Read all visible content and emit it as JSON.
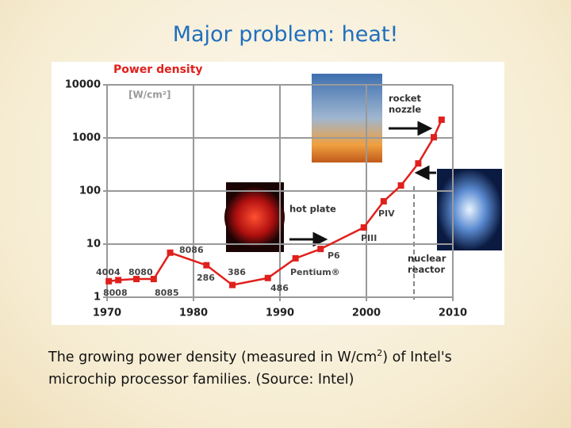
{
  "slide": {
    "title": "Major problem: heat!",
    "caption": [
      "The growing power density (measured in W/cm",
      "2",
      ") of Intel's",
      "microchip processor families. (Source: Intel)"
    ]
  },
  "chart_data": {
    "type": "line",
    "title": "Power density",
    "y_label": "[W/cm²]",
    "x": [
      1970.2,
      1971.3,
      1973.4,
      1975.4,
      1977.3,
      1981.5,
      1984.5,
      1988.6,
      1991.8,
      1994.7,
      1999.7,
      2002,
      2004,
      2006,
      2007.8,
      2008.7
    ],
    "series": [
      {
        "color": "#e0201c",
        "values": [
          2.0,
          2.1,
          2.2,
          2.2,
          6.9,
          4.0,
          1.7,
          2.3,
          5.4,
          8.1,
          20.6,
          64,
          127,
          331,
          1030,
          2200
        ],
        "point_labels": [
          "4004",
          "8008",
          "8080",
          "8085",
          "8086",
          "286",
          "386",
          "486",
          "Pentium®",
          "P6",
          "PIII",
          "PIV",
          null,
          null,
          null,
          null
        ]
      }
    ],
    "xlim": [
      1970,
      2010
    ],
    "xticks": [
      1970,
      1980,
      1990,
      2000,
      2010
    ],
    "ylim": [
      1,
      10000
    ],
    "yticks": [
      1,
      10,
      100,
      1000,
      10000
    ],
    "log_y": true,
    "grid": true,
    "annotations": [
      "rocket nozzle",
      "hot plate",
      "nuclear reactor"
    ]
  }
}
